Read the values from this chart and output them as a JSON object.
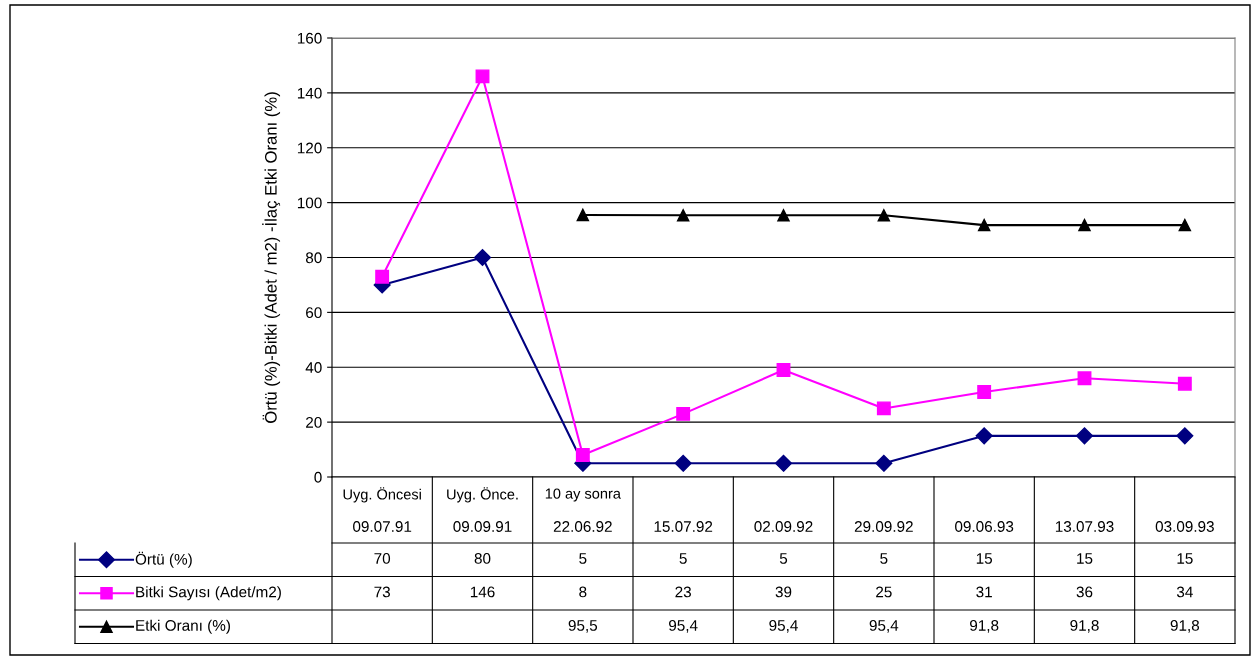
{
  "chart_data": {
    "type": "line",
    "ylabel": "Örtü (%)-Bitki (Adet / m2) -İlaç Etki Oranı (%)",
    "categories": [
      "Uyg. Öncesi\n09.07.91",
      "Uyg. Önce.\n09.09.91",
      "10 ay sonra\n22.06.92",
      "15.07.92",
      "02.09.92",
      "29.09.92",
      "09.06.93",
      "13.07.93",
      "03.09.93"
    ],
    "series": [
      {
        "name": "Örtü (%)",
        "color": "#000080",
        "marker": "diamond",
        "values": [
          70,
          80,
          5,
          5,
          5,
          5,
          15,
          15,
          15
        ],
        "value_labels": [
          "70",
          "80",
          "5",
          "5",
          "5",
          "5",
          "15",
          "15",
          "15"
        ]
      },
      {
        "name": "Bitki Sayısı (Adet/m2)",
        "color": "#ff00ff",
        "marker": "square",
        "values": [
          73,
          146,
          8,
          23,
          39,
          25,
          31,
          36,
          34
        ],
        "value_labels": [
          "73",
          "146",
          "8",
          "23",
          "39",
          "25",
          "31",
          "36",
          "34"
        ]
      },
      {
        "name": "Etki Oranı (%)",
        "color": "#000000",
        "marker": "triangle",
        "values": [
          null,
          null,
          95.5,
          95.4,
          95.4,
          95.4,
          91.8,
          91.8,
          91.8
        ],
        "value_labels": [
          null,
          null,
          "95,5",
          "95,4",
          "95,4",
          "95,4",
          "91,8",
          "91,8",
          "91,8"
        ]
      }
    ],
    "ylim": [
      0,
      160
    ],
    "yticks": [
      0,
      20,
      40,
      60,
      80,
      100,
      120,
      140,
      160
    ],
    "grid": "y",
    "legend": "bottom",
    "line_style": "solid"
  }
}
